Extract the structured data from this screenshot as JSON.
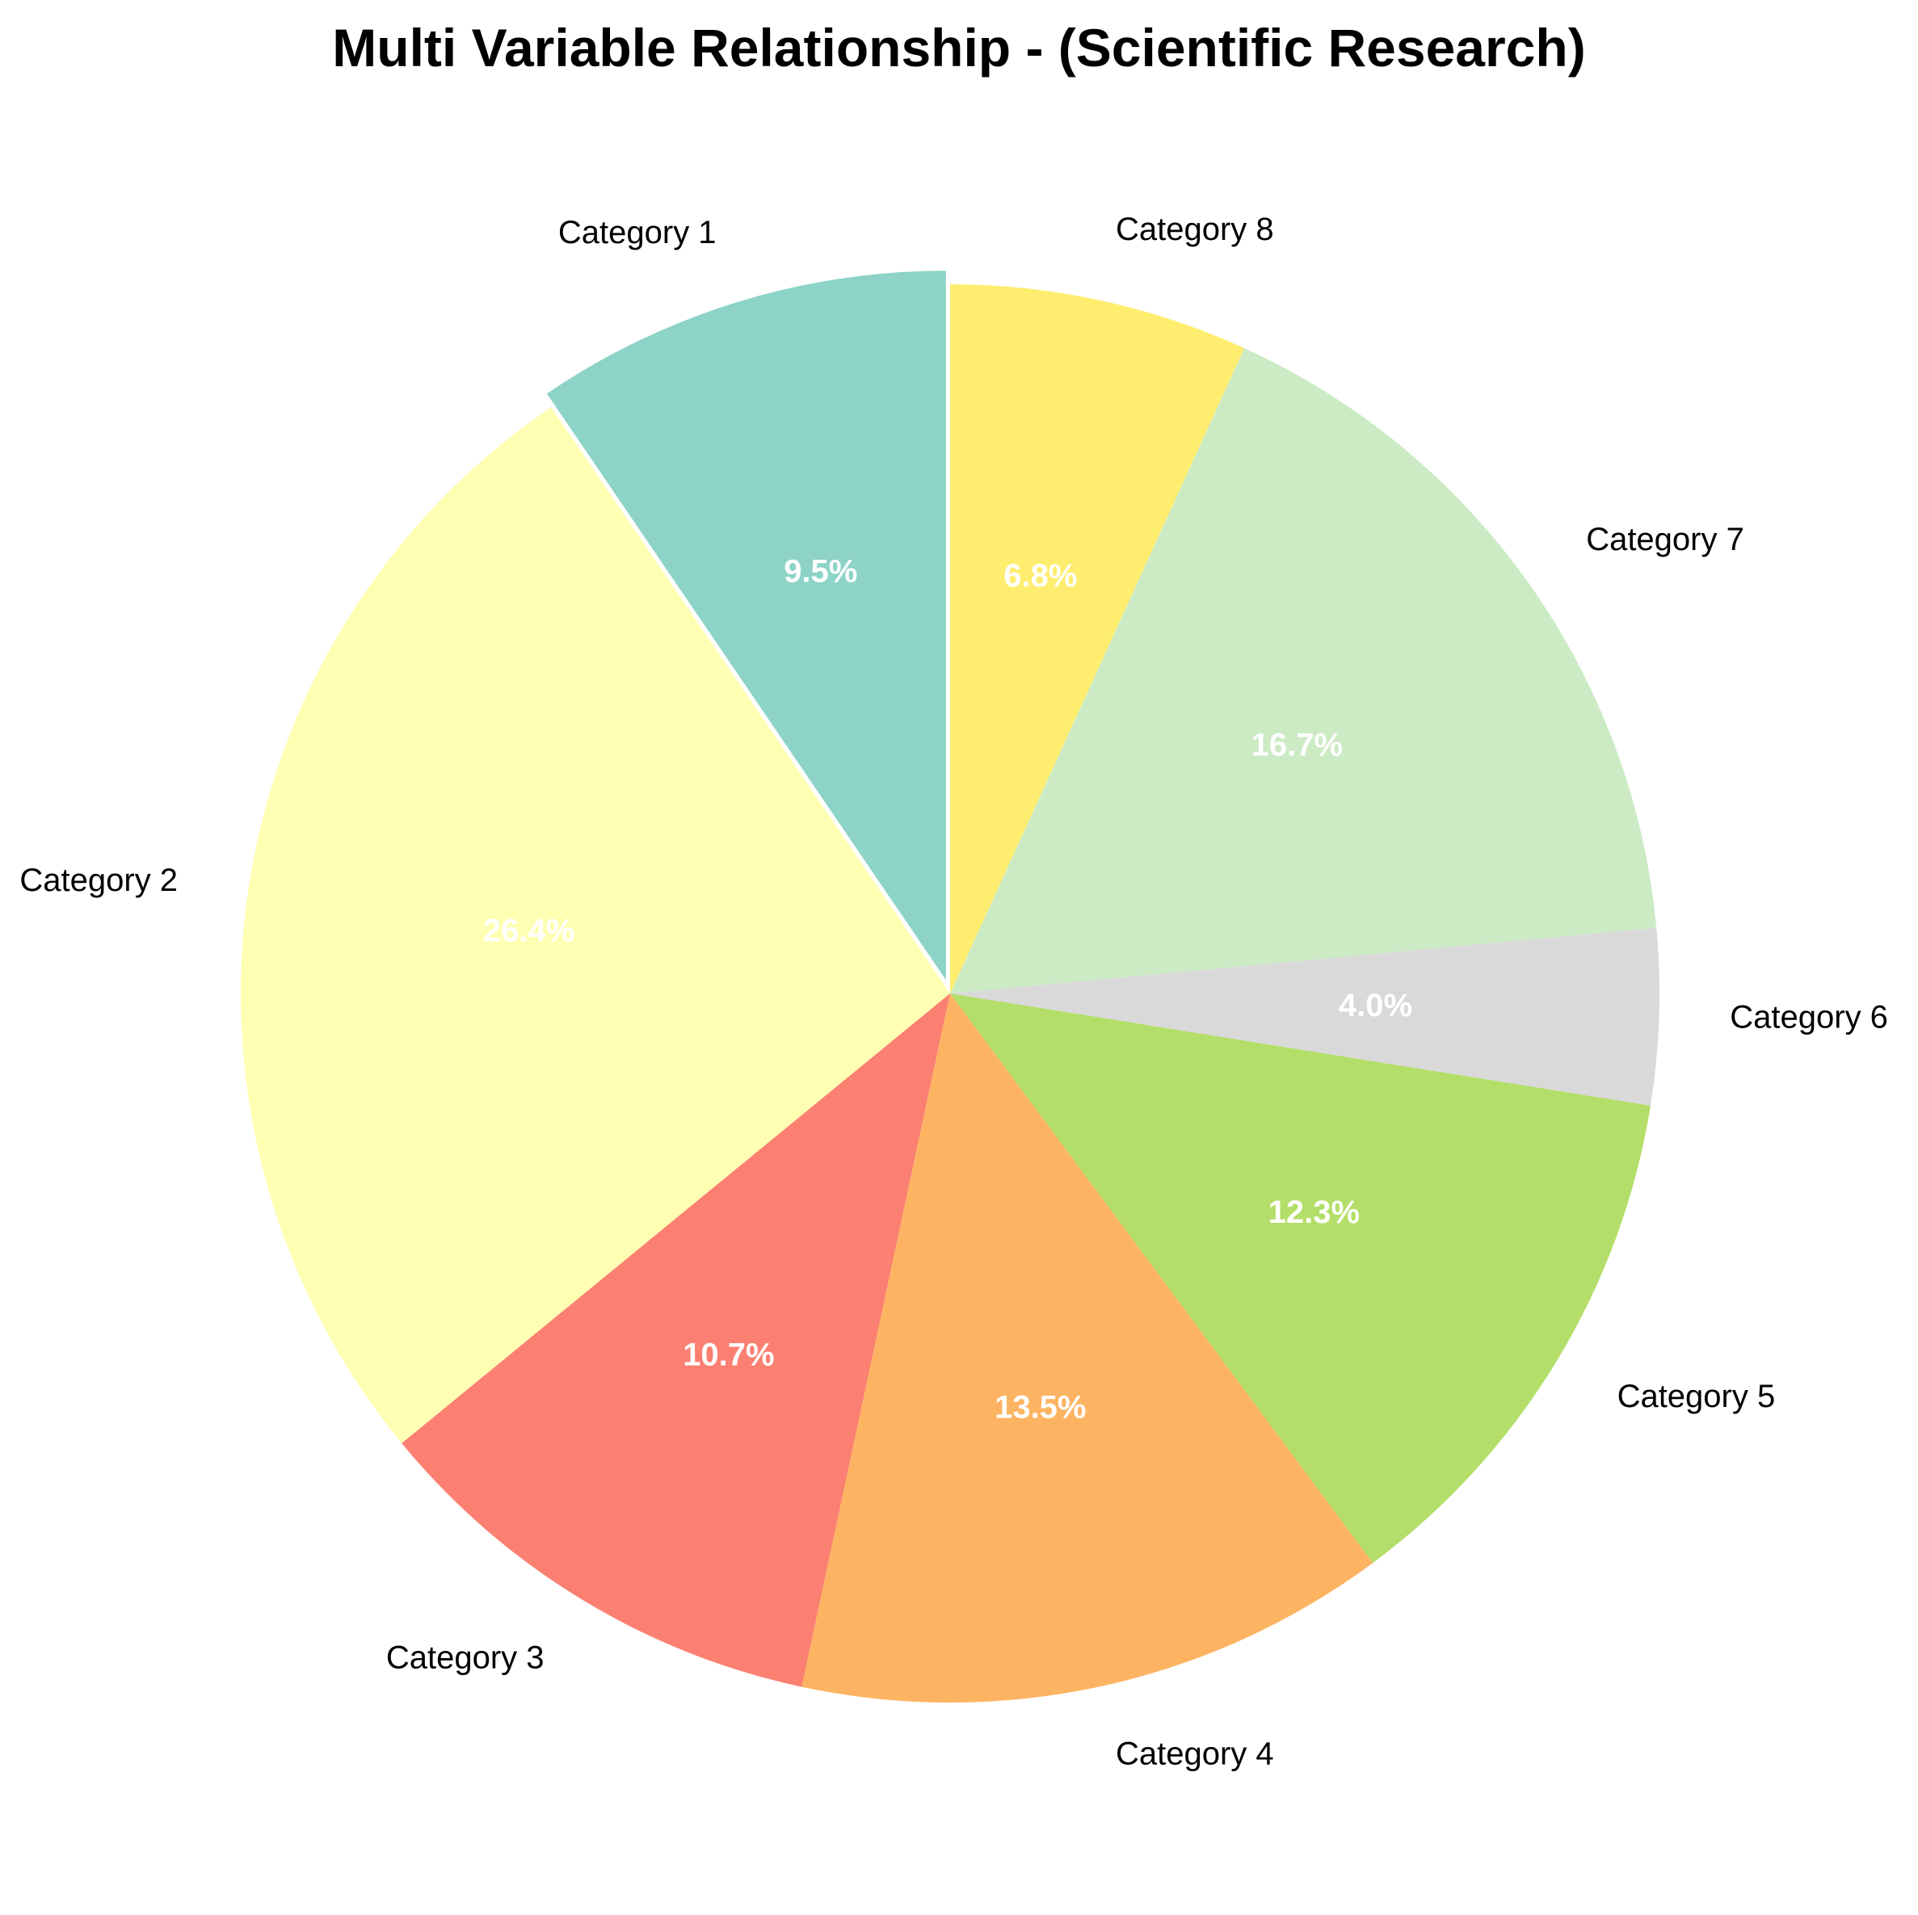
{
  "chart_data": {
    "type": "pie",
    "title": "Multi Variable Relationship - (Scientific Research)",
    "start_angle_deg": 90,
    "direction": "counterclockwise",
    "explode": [
      0.02,
      0,
      0,
      0,
      0,
      0,
      0,
      0
    ],
    "slices": [
      {
        "label": "Category 1",
        "value": 9.5,
        "pct_label": "9.5%",
        "color": "#8dd3c7"
      },
      {
        "label": "Category 2",
        "value": 26.4,
        "pct_label": "26.4%",
        "color": "#ffffb3"
      },
      {
        "label": "Category 3",
        "value": 10.7,
        "pct_label": "10.7%",
        "color": "#fb8072"
      },
      {
        "label": "Category 4",
        "value": 13.5,
        "pct_label": "13.5%",
        "color": "#fdb462"
      },
      {
        "label": "Category 5",
        "value": 12.3,
        "pct_label": "12.3%",
        "color": "#b3de69"
      },
      {
        "label": "Category 6",
        "value": 4.0,
        "pct_label": "4.0%",
        "color": "#d9d9d9"
      },
      {
        "label": "Category 7",
        "value": 16.7,
        "pct_label": "16.7%",
        "color": "#ccebc5"
      },
      {
        "label": "Category 8",
        "value": 6.8,
        "pct_label": "6.8%",
        "color": "#ffed6f"
      }
    ]
  }
}
